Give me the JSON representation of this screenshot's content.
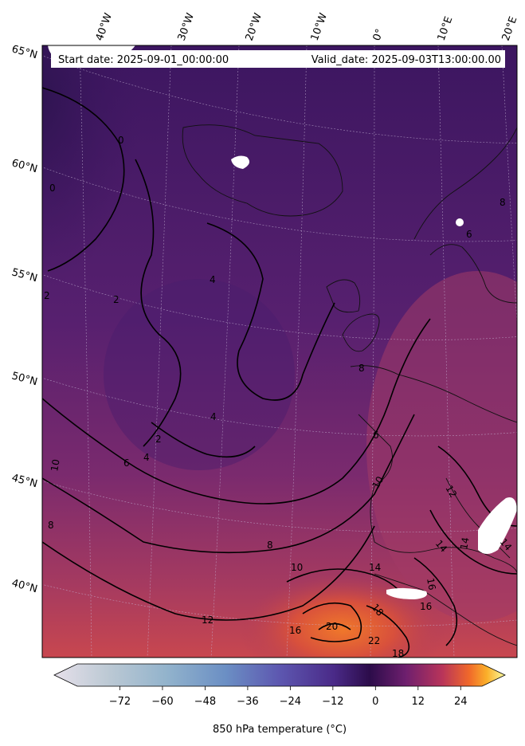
{
  "header": {
    "start_date": "Start date: 2025-09-01_00:00:00",
    "valid_date": "Valid_date: 2025-09-03T13:00:00.00"
  },
  "map": {
    "longitude_labels": [
      "40°W",
      "30°W",
      "20°W",
      "10°W",
      "0°",
      "10°E",
      "20°E"
    ],
    "latitude_labels": [
      "65°N",
      "60°N",
      "55°N",
      "50°N",
      "45°N",
      "40°N"
    ],
    "contour_labels": [
      "0",
      "0",
      "2",
      "2",
      "4",
      "4",
      "2",
      "6",
      "4",
      "6",
      "8",
      "8",
      "10",
      "10",
      "8",
      "10",
      "12",
      "12",
      "14",
      "14",
      "14",
      "14",
      "16",
      "16",
      "16",
      "18",
      "18",
      "20",
      "22",
      "8",
      "6"
    ]
  },
  "colorbar": {
    "label": "850 hPa temperature (°C)",
    "ticks": [
      "−72",
      "−60",
      "−48",
      "−36",
      "−24",
      "−12",
      "0",
      "12",
      "24"
    ],
    "tick_values": [
      -72,
      -60,
      -48,
      -36,
      -24,
      -12,
      0,
      12,
      24
    ],
    "min": -84,
    "max": 30
  },
  "colors": {
    "cold_region": "#3f1a5e",
    "mid_region": "#5a2474",
    "warm_region": "#a3356c",
    "hot_region": "#e8652a"
  }
}
